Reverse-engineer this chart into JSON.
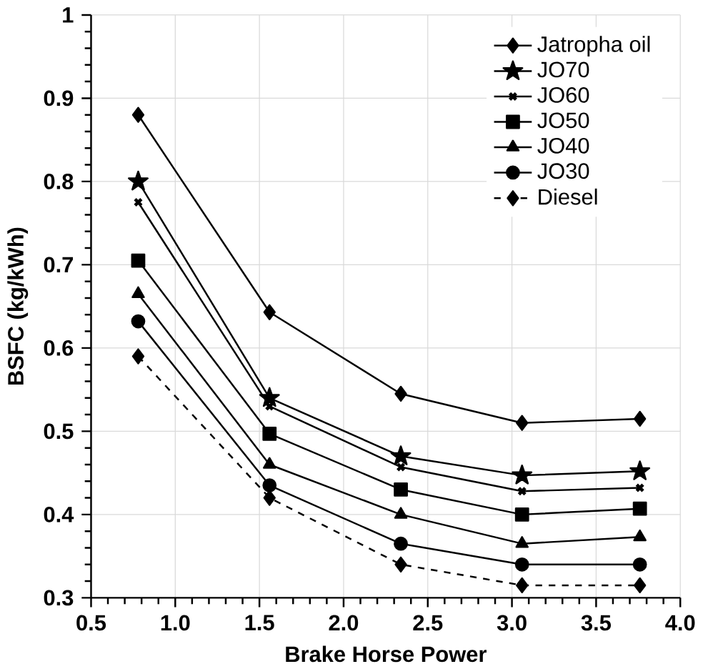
{
  "chart_data": {
    "type": "line",
    "xlabel": "Brake Horse Power",
    "ylabel": "BSFC (kg/kWh)",
    "x": [
      0.78,
      1.56,
      2.34,
      3.06,
      3.76
    ],
    "xlim": [
      0.5,
      4.0
    ],
    "xticks": [
      {
        "value": 0.5,
        "label": "0.5"
      },
      {
        "value": 1.0,
        "label": "1.0"
      },
      {
        "value": 1.5,
        "label": "1.5"
      },
      {
        "value": 2.0,
        "label": "2.0"
      },
      {
        "value": 2.5,
        "label": "2.5"
      },
      {
        "value": 3.0,
        "label": "3.0"
      },
      {
        "value": 3.5,
        "label": "3.5"
      },
      {
        "value": 4.0,
        "label": "4.0"
      }
    ],
    "ylim": [
      0.3,
      1
    ],
    "yticks": [
      0.3,
      0.4,
      0.5,
      0.6,
      0.7,
      0.8,
      0.9,
      1
    ],
    "grid": true,
    "legend": "top right",
    "series": [
      {
        "name": "Jatropha oil",
        "color": "#000000",
        "marker": "diamond",
        "line_style": "solid",
        "values": [
          0.88,
          0.643,
          0.545,
          0.51,
          0.515
        ]
      },
      {
        "name": "JO70",
        "color": "#000000",
        "marker": "star",
        "line_style": "solid",
        "values": [
          0.8,
          0.54,
          0.47,
          0.447,
          0.452
        ]
      },
      {
        "name": "JO60",
        "color": "#000000",
        "marker": "cross",
        "line_style": "solid",
        "values": [
          0.775,
          0.53,
          0.457,
          0.428,
          0.432
        ]
      },
      {
        "name": "JO50",
        "color": "#000000",
        "marker": "square",
        "line_style": "solid",
        "values": [
          0.705,
          0.497,
          0.43,
          0.4,
          0.407
        ]
      },
      {
        "name": "JO40",
        "color": "#000000",
        "marker": "triangle",
        "line_style": "solid",
        "values": [
          0.665,
          0.46,
          0.4,
          0.365,
          0.373
        ]
      },
      {
        "name": "JO30",
        "color": "#000000",
        "marker": "circle",
        "line_style": "solid",
        "values": [
          0.632,
          0.435,
          0.365,
          0.34,
          0.34
        ]
      },
      {
        "name": "Diesel",
        "color": "#000000",
        "marker": "diamond",
        "line_style": "dashed",
        "values": [
          0.59,
          0.42,
          0.34,
          0.315,
          0.315
        ]
      }
    ]
  }
}
